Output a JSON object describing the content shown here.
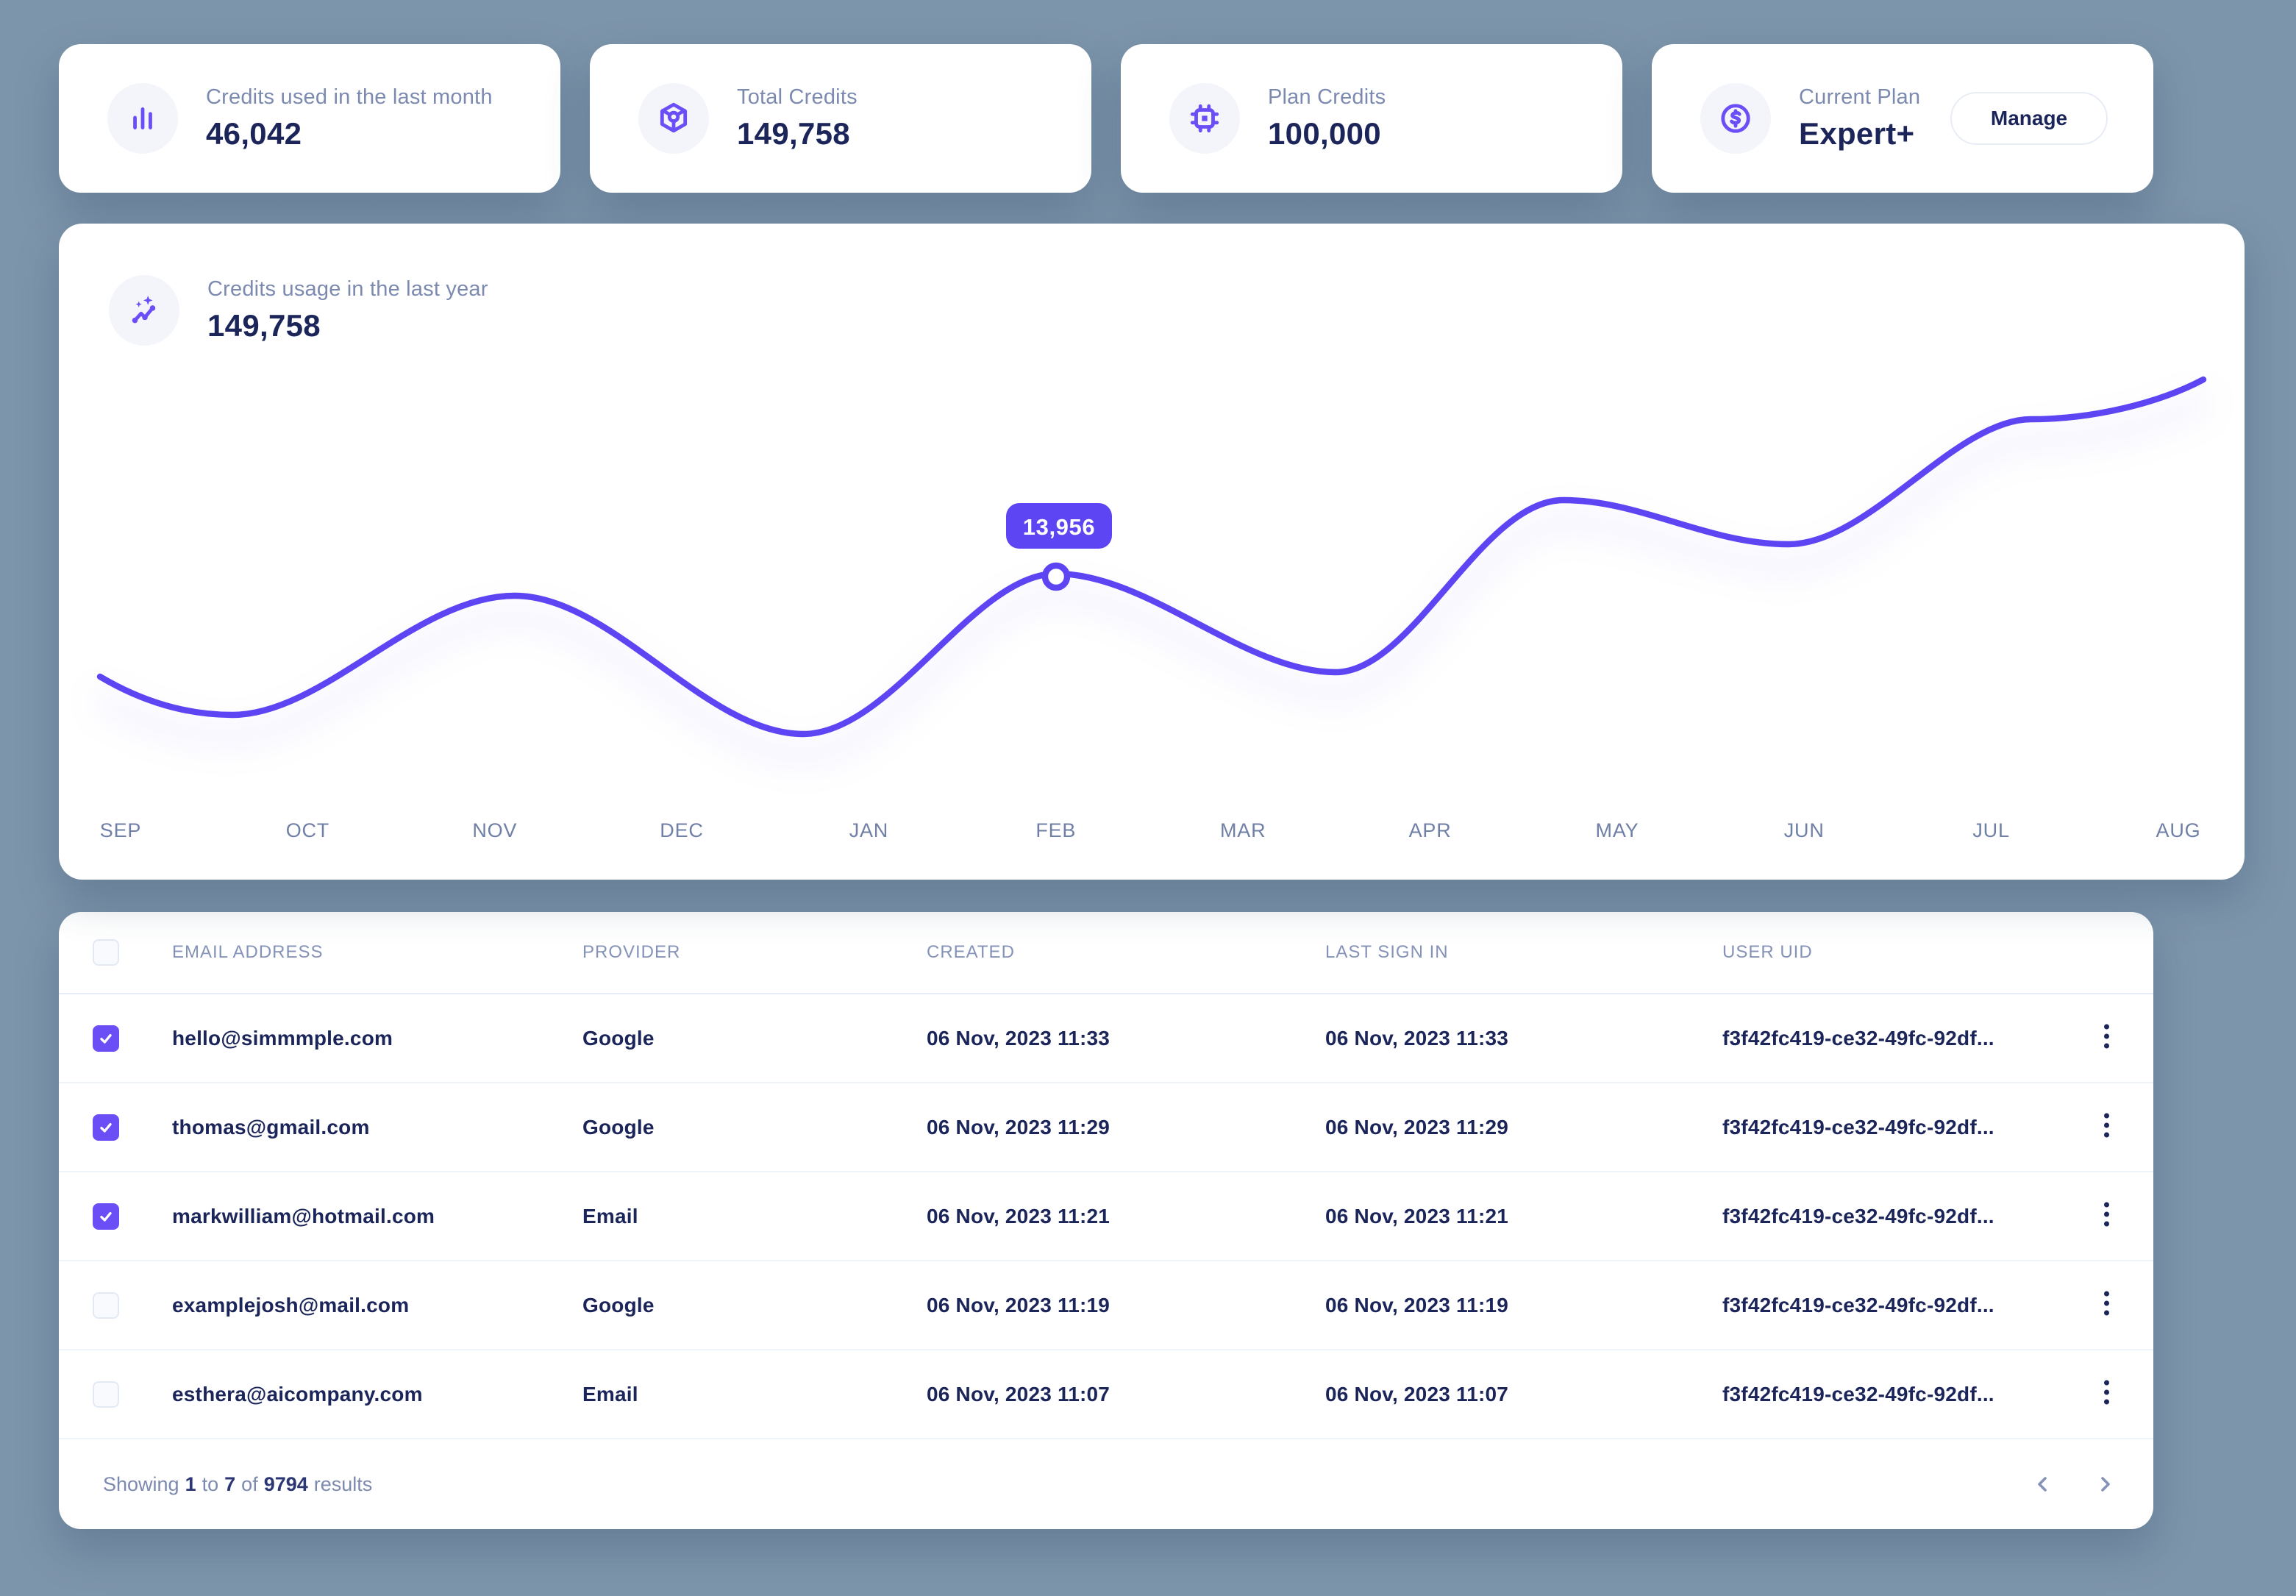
{
  "colors": {
    "background": "#7D95AB",
    "card": "#FFFFFF",
    "accent_purple": "#5D45F3",
    "checkbox_purple": "#6B4EF6",
    "navy_text": "#1B2559",
    "muted_label": "#7C8AB0"
  },
  "stats": [
    {
      "icon": "bar-chart-icon",
      "label": "Credits used in the last month",
      "value": "46,042"
    },
    {
      "icon": "cube-icon",
      "label": "Total Credits",
      "value": "149,758"
    },
    {
      "icon": "cpu-icon",
      "label": "Plan Credits",
      "value": "100,000"
    },
    {
      "icon": "dollar-icon",
      "label": "Current Plan",
      "value": "Expert+",
      "button": "Manage"
    }
  ],
  "chart": {
    "label": "Credits usage in the last year",
    "value": "149,758",
    "tooltip_value": "13,956"
  },
  "chart_data": {
    "type": "line",
    "title": "Credits usage in the last year",
    "total_label": "149,758",
    "x": [
      "SEP",
      "OCT",
      "NOV",
      "DEC",
      "JAN",
      "FEB",
      "MAR",
      "APR",
      "MAY",
      "JUN",
      "JUL",
      "AUG"
    ],
    "values_estimated": [
      8100,
      7300,
      12800,
      6900,
      6500,
      13956,
      10700,
      10700,
      17600,
      15400,
      21500,
      23600
    ],
    "highlighted_point": {
      "x": "FEB",
      "value": 13956,
      "label": "13,956"
    },
    "xlabel": "",
    "ylabel": "",
    "grid": false,
    "legend": "none",
    "line_color": "#5D45F3"
  },
  "table": {
    "columns": [
      "EMAIL ADDRESS",
      "PROVIDER",
      "CREATED",
      "LAST SIGN IN",
      "USER UID"
    ],
    "rows": [
      {
        "checked": true,
        "email": "hello@simmmple.com",
        "provider": "Google",
        "created": "06 Nov, 2023 11:33",
        "last_sign_in": "06 Nov, 2023 11:33",
        "user_uid": "f3f42fc419-ce32-49fc-92df..."
      },
      {
        "checked": true,
        "email": "thomas@gmail.com",
        "provider": "Google",
        "created": "06 Nov, 2023 11:29",
        "last_sign_in": "06 Nov, 2023 11:29",
        "user_uid": "f3f42fc419-ce32-49fc-92df..."
      },
      {
        "checked": true,
        "email": "markwilliam@hotmail.com",
        "provider": "Email",
        "created": "06 Nov, 2023 11:21",
        "last_sign_in": "06 Nov, 2023 11:21",
        "user_uid": "f3f42fc419-ce32-49fc-92df..."
      },
      {
        "checked": false,
        "email": "examplejosh@mail.com",
        "provider": "Google",
        "created": "06 Nov, 2023 11:19",
        "last_sign_in": "06 Nov, 2023 11:19",
        "user_uid": "f3f42fc419-ce32-49fc-92df..."
      },
      {
        "checked": false,
        "email": "esthera@aicompany.com",
        "provider": "Email",
        "created": "06 Nov, 2023 11:07",
        "last_sign_in": "06 Nov, 2023 11:07",
        "user_uid": "f3f42fc419-ce32-49fc-92df..."
      }
    ],
    "pagination": {
      "showing_word": "Showing",
      "from": "1",
      "to_word": "to",
      "to": "7",
      "of_word": "of",
      "total": "9794",
      "results_word": "results"
    }
  }
}
